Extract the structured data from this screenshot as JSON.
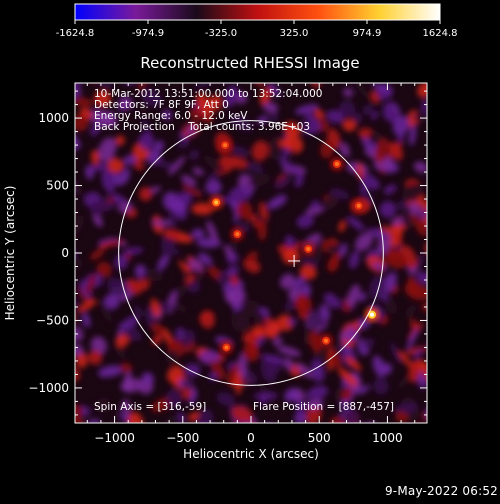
{
  "figure": {
    "title": "Reconstructed RHESSI Image",
    "timestamp": "9-May-2022 06:52"
  },
  "colorbar": {
    "tick_labels": [
      "-1624.8",
      "-974.9",
      "-325.0",
      "325.0",
      "974.9",
      "1624.8"
    ],
    "tick_values": [
      -1624.8,
      -974.9,
      -325.0,
      325.0,
      974.9,
      1624.8
    ],
    "range": [
      -1624.8,
      1624.8
    ],
    "colormap": [
      "#0000ff",
      "#7a1a9a",
      "#1a0a1a",
      "#c01010",
      "#ff5010",
      "#ffd030",
      "#ffffff"
    ]
  },
  "annotations": {
    "time_range": "10-Mar-2012 13:51:00.000 to 13:52:04.000",
    "detectors": "Detectors: 7F 8F 9F, Att 0",
    "energy_range": "Energy Range: 6.0 - 12.0 keV",
    "method_counts": "Back Projection    Total counts: 3.96E+03",
    "spin_axis": "Spin Axis = [316,-59]",
    "flare_position": "Flare Position = [887,-457]"
  },
  "chart_data": {
    "type": "heatmap",
    "title": "Reconstructed RHESSI Image",
    "xlabel": "Heliocentric X (arcsec)",
    "ylabel": "Heliocentric Y (arcsec)",
    "xlim": [
      -1290,
      1290
    ],
    "ylim": [
      -1260,
      1260
    ],
    "xticks": [
      -1000,
      -500,
      0,
      500,
      1000
    ],
    "yticks": [
      -1000,
      -500,
      0,
      500,
      1000
    ],
    "xtick_labels": [
      "−1000",
      "−500",
      "0",
      "500",
      "1000"
    ],
    "ytick_labels": [
      "−1000",
      "−500",
      "0",
      "500",
      "1000"
    ],
    "solar_limb_radius": 970,
    "spin_axis_marker": [
      316,
      -59
    ],
    "peak_source": {
      "x": 887,
      "y": -457,
      "value": 1624.8
    },
    "secondary_sources": [
      {
        "x": -255,
        "y": 375,
        "value": 974.9
      },
      {
        "x": -190,
        "y": 800,
        "value": 600
      },
      {
        "x": 630,
        "y": 660,
        "value": 700
      },
      {
        "x": -100,
        "y": 140,
        "value": 500
      },
      {
        "x": 420,
        "y": 30,
        "value": 650
      },
      {
        "x": 790,
        "y": 350,
        "value": 600
      },
      {
        "x": -180,
        "y": -700,
        "value": 500
      },
      {
        "x": 550,
        "y": -650,
        "value": 550
      }
    ]
  }
}
